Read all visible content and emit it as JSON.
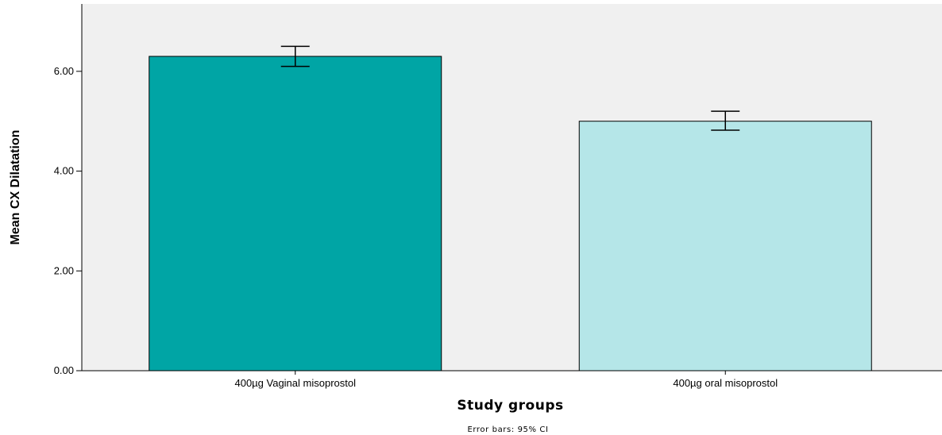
{
  "chart_data": {
    "type": "bar",
    "categories": [
      "400µg Vaginal misoprostol",
      "400µg oral misoprostol"
    ],
    "values": [
      6.3,
      5.0
    ],
    "error_low": [
      6.1,
      4.82
    ],
    "error_high": [
      6.5,
      5.2
    ],
    "bar_colors": [
      "#00a5a5",
      "#b5e6e8"
    ],
    "plot_background": "#f0f0f0",
    "xlabel": "Study groups",
    "ylabel": "Mean CX Dilatation",
    "ylim": [
      0,
      7.35
    ],
    "yticks": [
      0,
      2,
      4,
      6
    ],
    "ytick_labels": [
      "0.00",
      "2.00",
      "4.00",
      "6.00"
    ],
    "grid": false,
    "footnote": "Error bars: 95% CI"
  }
}
